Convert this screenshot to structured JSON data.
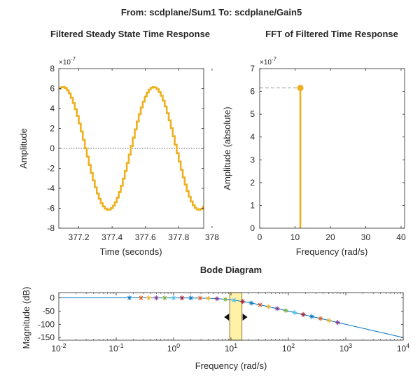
{
  "figure": {
    "suptitle": "From: scdplane/Sum1  To: scdplane/Gain5"
  },
  "chart_data": [
    {
      "type": "line",
      "title": "Filtered Steady State Time Response",
      "xlabel": "Time (seconds)",
      "ylabel": "Amplitude",
      "exponent_label": "×10^{-7}",
      "xlim": [
        377.08,
        377.95
      ],
      "ylim": [
        -8,
        8
      ],
      "xticks": [
        377.2,
        377.4,
        377.6,
        377.8,
        378
      ],
      "xtick_labels": [
        "377.2",
        "377.4",
        "377.6",
        "377.8",
        "378"
      ],
      "yticks": [
        -8,
        -6,
        -4,
        -2,
        0,
        2,
        4,
        6,
        8
      ],
      "ytick_labels": [
        "-8",
        "-6",
        "-4",
        "-2",
        "0",
        "2",
        "4",
        "6",
        "8"
      ],
      "zero_line": true,
      "line_color": "#EDB120",
      "staircase": true,
      "signal": {
        "amplitude": 6.15,
        "frequency_rad_s": 11.3,
        "peak_times": [
          377.1,
          377.645
        ]
      }
    },
    {
      "type": "stem",
      "title": "FFT of Filtered Time Response",
      "xlabel": "Frequency (rad/s)",
      "ylabel": "Amplitude (absolute)",
      "exponent_label": "×10^{-7}",
      "xlim": [
        0,
        41
      ],
      "ylim": [
        0,
        7
      ],
      "xticks": [
        0,
        10,
        20,
        30,
        40
      ],
      "xtick_labels": [
        "0",
        "10",
        "20",
        "30",
        "40"
      ],
      "yticks": [
        0,
        1,
        2,
        3,
        4,
        5,
        6,
        7
      ],
      "ytick_labels": [
        "0",
        "1",
        "2",
        "3",
        "4",
        "5",
        "6",
        "7"
      ],
      "stems": [
        {
          "x": 11.5,
          "y": 6.15
        }
      ],
      "line_color": "#EDB120",
      "peak_guide_line": true
    },
    {
      "type": "line",
      "title": "Bode Diagram",
      "xlabel": "Frequency (rad/s)",
      "ylabel": "Magnitude (dB)",
      "xscale": "log",
      "xlim": [
        0.01,
        10000
      ],
      "ylim": [
        -160,
        20
      ],
      "xtick_exponents": [
        -2,
        -1,
        0,
        1,
        2,
        3,
        4
      ],
      "xtick_base": "10",
      "yticks": [
        0,
        -50,
        -100,
        -150
      ],
      "ytick_labels": [
        "0",
        "-50",
        "-100",
        "-150"
      ],
      "line_color": "#0072BD",
      "curve": {
        "low_freq_gain_db": 0,
        "corner_rad_s": 10,
        "order": 2.5
      },
      "markers_x": [
        0.17,
        0.27,
        0.37,
        0.5,
        0.7,
        1.0,
        1.4,
        2.0,
        2.9,
        4.0,
        5.7,
        8.0,
        11.3,
        16.0,
        22.6,
        32.0,
        45.0,
        64.0,
        90.0,
        128.0,
        181.0,
        256.0,
        362.0,
        512.0,
        724.0
      ],
      "marker_colors": [
        "#0072BD",
        "#D95319",
        "#EDB120",
        "#7E2F8E",
        "#77AC30",
        "#4DBEEE",
        "#A2142F"
      ],
      "highlight_band": {
        "from": 9.5,
        "to": 15.5,
        "fill": "#FFF2A8",
        "edge": "#8C7A2B"
      }
    }
  ]
}
